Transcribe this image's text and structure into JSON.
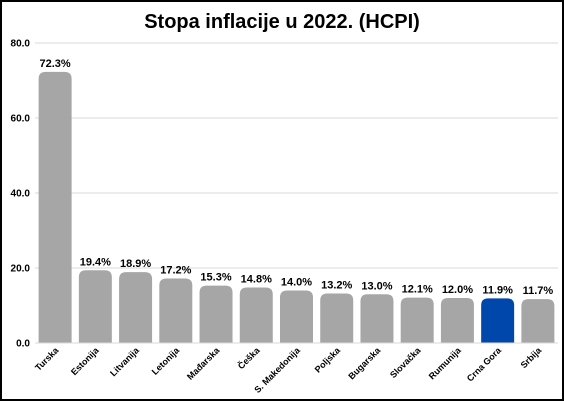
{
  "chart_data": {
    "type": "bar",
    "title": "Stopa inflacije u 2022. (HCPI)",
    "xlabel": "",
    "ylabel": "",
    "ylim": [
      0,
      80
    ],
    "yticks": [
      "0.0",
      "20.0",
      "40.0",
      "60.0",
      "80.0"
    ],
    "grid": true,
    "categories": [
      "Turska",
      "Estonija",
      "Litvanija",
      "Letonija",
      "Mađarska",
      "Češka",
      "S. Makedonija",
      "Poljska",
      "Bugarska",
      "Slovačka",
      "Rumunija",
      "Crna Gora",
      "Srbija"
    ],
    "values": [
      72.3,
      19.4,
      18.9,
      17.2,
      15.3,
      14.8,
      14.0,
      13.2,
      13.0,
      12.1,
      12.0,
      11.9,
      11.7
    ],
    "data_labels": [
      "72.3%",
      "19.4%",
      "18.9%",
      "17.2%",
      "15.3%",
      "14.8%",
      "14.0%",
      "13.2%",
      "13.0%",
      "12.1%",
      "12.0%",
      "11.9%",
      "11.7%"
    ],
    "colors": {
      "default_bar": "#a6a6a6",
      "highlight_bar": "#0047ab",
      "gridline": "#d9d9d9"
    },
    "highlight_category": "Crna Gora"
  }
}
